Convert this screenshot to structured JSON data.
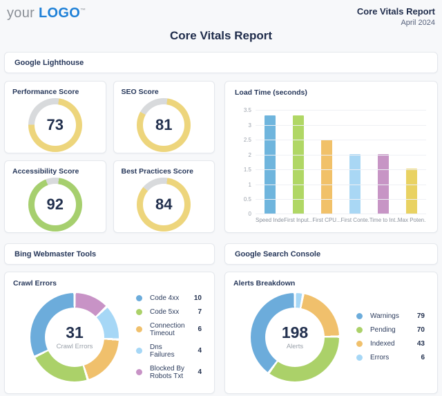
{
  "header": {
    "logo_your": "your",
    "logo_brand": "LOGO",
    "logo_tm": "™",
    "report_title": "Core Vitals Report",
    "report_date": "April 2024"
  },
  "page_title": "Core Vitals Report",
  "sections": {
    "lighthouse": "Google Lighthouse",
    "bing": "Bing Webmaster Tools",
    "google_search_console": "Google Search Console"
  },
  "colors": {
    "background": "#F7F8FA",
    "navy_text": "#22304E",
    "logo_blue": "#1E80D7",
    "gauge_track": "#D8DADC",
    "gauge_yellow": "#EDD57C",
    "gauge_green": "#A6CF6E",
    "donut_blue": "#6CACDB",
    "donut_green": "#ABD169",
    "donut_orange": "#F0C06C",
    "donut_lightblue": "#A6D7F6",
    "donut_purple": "#C893C6"
  },
  "chart_data": [
    {
      "type": "gauge",
      "title": "Performance Score",
      "value": 73,
      "max": 100,
      "color": "#EDD57C",
      "track_color": "#D8DADC"
    },
    {
      "type": "gauge",
      "title": "SEO Score",
      "value": 81,
      "max": 100,
      "color": "#EDD57C",
      "track_color": "#D8DADC"
    },
    {
      "type": "gauge",
      "title": "Accessibility Score",
      "value": 92,
      "max": 100,
      "color": "#A6CF6E",
      "track_color": "#D8DADC"
    },
    {
      "type": "gauge",
      "title": "Best Practices Score",
      "value": 84,
      "max": 100,
      "color": "#EDD57C",
      "track_color": "#D8DADC"
    },
    {
      "type": "bar",
      "title": "Load Time (seconds)",
      "categories": [
        "Speed Index",
        "First Input...",
        "First CPU...",
        "First Conte...",
        "Time to Int...",
        "Max Poten..."
      ],
      "values": [
        3.34,
        3.34,
        2.53,
        2.05,
        2.05,
        1.56
      ],
      "colors": [
        "#6FB5DD",
        "#B0D765",
        "#F1C169",
        "#A9D7F4",
        "#C795C5",
        "#E9D262"
      ],
      "xlabel": "",
      "ylabel": "",
      "ylim": [
        0,
        3.5
      ],
      "yticks": [
        0,
        0.5,
        1,
        1.5,
        2,
        2.5,
        3,
        3.5
      ],
      "grid": true,
      "legend": "none"
    },
    {
      "type": "donut",
      "title": "Crawl Errors",
      "center_value": "31",
      "center_label": "Crawl Errors",
      "total": 31,
      "slices": [
        {
          "label": "Code 4xx",
          "value": 10,
          "color": "#6CACDB"
        },
        {
          "label": "Code 5xx",
          "value": 7,
          "color": "#ABD169"
        },
        {
          "label": "Connection Timeout",
          "value": 6,
          "color": "#F0C06C"
        },
        {
          "label": "Dns Failures",
          "value": 4,
          "color": "#A6D7F6"
        },
        {
          "label": "Blocked By Robots Txt",
          "value": 4,
          "color": "#C893C6"
        }
      ],
      "clockwise_order_from_top": [
        "Blocked By Robots Txt",
        "Dns Failures",
        "Connection Timeout",
        "Code 5xx",
        "Code 4xx"
      ],
      "legend_position": "right"
    },
    {
      "type": "donut",
      "title": "Alerts Breakdown",
      "center_value": "198",
      "center_label": "Alerts",
      "total": 198,
      "slices": [
        {
          "label": "Warnings",
          "value": 79,
          "color": "#6CACDB"
        },
        {
          "label": "Pending",
          "value": 70,
          "color": "#ABD169"
        },
        {
          "label": "Indexed",
          "value": 43,
          "color": "#F0C06C"
        },
        {
          "label": "Errors",
          "value": 6,
          "color": "#A6D7F6"
        }
      ],
      "clockwise_order_from_top": [
        "Errors",
        "Indexed",
        "Pending",
        "Warnings"
      ],
      "legend_position": "right"
    }
  ]
}
